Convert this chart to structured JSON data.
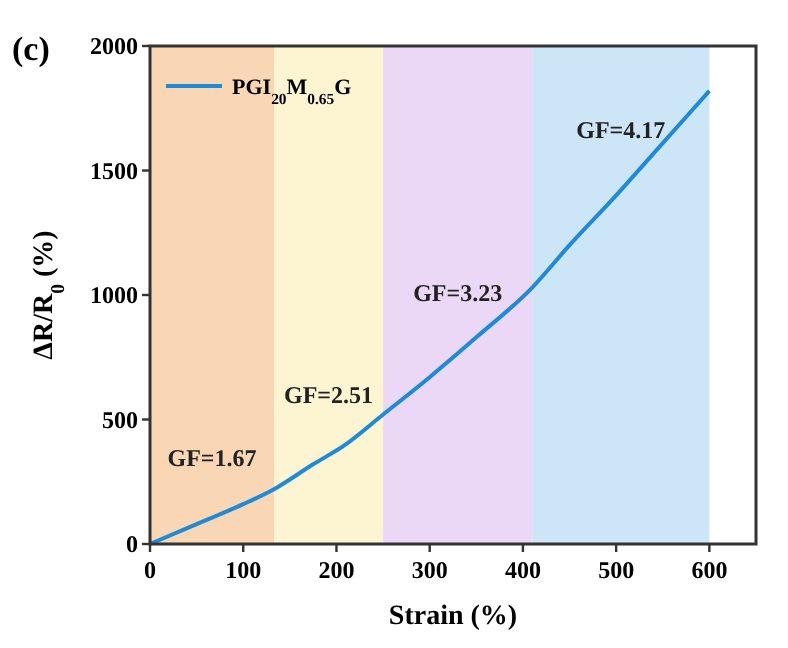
{
  "chart_data": {
    "type": "line",
    "xlabel": "Strain (%)",
    "ylabel": "ΔR/R$_{0}$ (%)",
    "x": [
      0,
      50,
      100,
      133,
      175,
      210,
      250,
      300,
      350,
      410,
      450,
      500,
      550,
      600
    ],
    "series": [
      {
        "name": "PGI$_{20}$M$_{0.65}$G",
        "color": "#1f8ad6",
        "values": [
          0,
          80,
          160,
          220,
          320,
          400,
          520,
          670,
          830,
          1030,
          1200,
          1400,
          1610,
          1820
        ]
      }
    ],
    "xlim": [
      0,
      650
    ],
    "xticks": [
      0,
      100,
      200,
      300,
      400,
      500,
      600
    ],
    "ylim": [
      0,
      2000
    ],
    "yticks": [
      0,
      500,
      1000,
      1500,
      2000
    ],
    "bands": [
      {
        "axis": "x",
        "from": 0,
        "to": 133,
        "color": "#fad7b4",
        "label": "GF=1.67"
      },
      {
        "axis": "x",
        "from": 133,
        "to": 250,
        "color": "#fdf5d2",
        "label": "GF=2.51"
      },
      {
        "axis": "x",
        "from": 250,
        "to": 410,
        "color": "#ebd8f7",
        "label": "GF=3.23"
      },
      {
        "axis": "x",
        "from": 410,
        "to": 600,
        "color": "#cce6f8",
        "label": "GF=4.17"
      }
    ],
    "annotations": [
      "(c)"
    ],
    "legend": "top left",
    "grid": false,
    "line_style": "solid"
  }
}
